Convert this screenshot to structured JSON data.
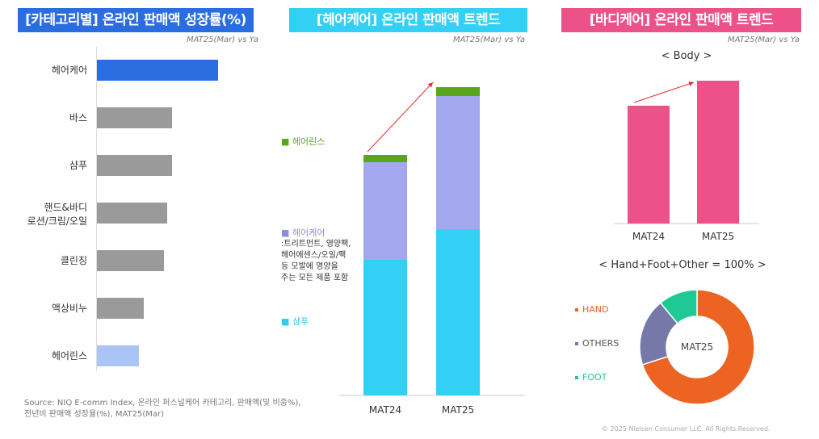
{
  "panels": {
    "left": {
      "title": "[카테고리별] 온라인 판매액 성장률(%)",
      "subtitle": "MAT25(Mar) vs Ya"
    },
    "middle": {
      "title": "[헤어케어] 온라인 판매액 트렌드",
      "subtitle": "MAT25(Mar) vs Ya"
    },
    "right": {
      "title": "[바디케어] 온라인 판매액 트렌드",
      "subtitle": "MAT25(Mar) vs Ya",
      "body_heading": "< Body >",
      "donut_heading": "< Hand+Foot+Other = 100% >"
    }
  },
  "haircare_legend": {
    "rinse": "헤어린스",
    "care": "헤어케어",
    "care_desc": [
      ":트리트먼트, 영양팩,",
      "헤어에센스/오일/팩",
      "등 모발에 영양을",
      "주는 모든 제품 포함"
    ],
    "shampoo": "샴푸"
  },
  "source": [
    "Source: NIQ E-comm Index, 온라인 퍼스널케어 카테고리, 판매액(및 비중%),",
    "전년비 판매액 성장율(%), MAT25(Mar)"
  ],
  "copyright": "© 2025 Nielsen Consumer LLC. All Rights Reserved.",
  "colors": {
    "blue": "#2a6de1",
    "gray": "#9a9a9a",
    "lightblue": "#a9c4f5",
    "cyan": "#33d0f5",
    "purple": "#a3a8ee",
    "green": "#5aa51c",
    "pink": "#ec5288",
    "hand": "#ec6322",
    "others": "#7679a8",
    "foot": "#1fc996"
  },
  "chart_data": [
    {
      "type": "bar",
      "orientation": "horizontal",
      "title": "[카테고리별] 온라인 판매액 성장률(%)",
      "categories": [
        "헤어케어",
        "바스",
        "샴푸",
        "핸드&바디\n로션/크림/오일",
        "클린징",
        "액상비누",
        "헤어린스"
      ],
      "values": [
        150,
        93,
        93,
        87,
        83,
        58,
        52
      ],
      "note": "relative growth, no axis values shown"
    },
    {
      "type": "bar",
      "stacked": true,
      "title": "[헤어케어] 온라인 판매액 트렌드",
      "categories": [
        "MAT24",
        "MAT25"
      ],
      "series": [
        {
          "name": "샴푸",
          "values": [
            168,
            206
          ]
        },
        {
          "name": "헤어케어",
          "values": [
            121,
            165
          ]
        },
        {
          "name": "헤어린스",
          "values": [
            9,
            11
          ]
        }
      ]
    },
    {
      "type": "bar",
      "title": "< Body >",
      "categories": [
        "MAT24",
        "MAT25"
      ],
      "values": [
        146,
        177
      ]
    },
    {
      "type": "pie",
      "donut": true,
      "center_label": "MAT25",
      "title": "< Hand+Foot+Other = 100% >",
      "slices": [
        {
          "name": "HAND",
          "value": 70
        },
        {
          "name": "OTHERS",
          "value": 19
        },
        {
          "name": "FOOT",
          "value": 11
        }
      ]
    }
  ]
}
